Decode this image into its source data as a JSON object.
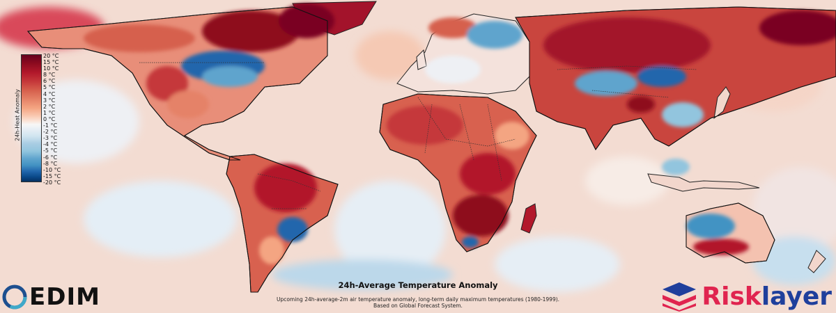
{
  "map": {
    "title": "24h-Average Temperature Anomaly",
    "description_lines": [
      "Upcoming 24h-average-2m air temperature anomaly, long-term daily maximum temperatures (1980-1999).",
      "Based on Global Forecast System."
    ],
    "colors": {
      "ocean_neutral": "#f3dcd2",
      "warm_strong": "#b2182b",
      "warm_extreme": "#7a0020",
      "warm_mild": "#f4a582",
      "cool_mild": "#d1e5f0",
      "cool_moderate": "#92c5de",
      "cool_strong": "#2166ac",
      "cool_extreme": "#053061"
    }
  },
  "legend": {
    "title": "24h-Heat Anomaly",
    "labels": [
      "20 °C",
      "15 °C",
      "10 °C",
      "8 °C",
      "6 °C",
      "5 °C",
      "4 °C",
      "3 °C",
      "2 °C",
      "1 °C",
      "0 °C",
      "-1 °C",
      "-2 °C",
      "-3 °C",
      "-4 °C",
      "-5 °C",
      "-6 °C",
      "-8 °C",
      "-10 °C",
      "-15 °C",
      "-20 °C"
    ]
  },
  "logos": {
    "left": {
      "text": "EDIM",
      "icon": "edim-ring-icon"
    },
    "right": {
      "text_a": "Risk",
      "text_b": "layer",
      "icon": "risklayer-stack-icon"
    }
  }
}
